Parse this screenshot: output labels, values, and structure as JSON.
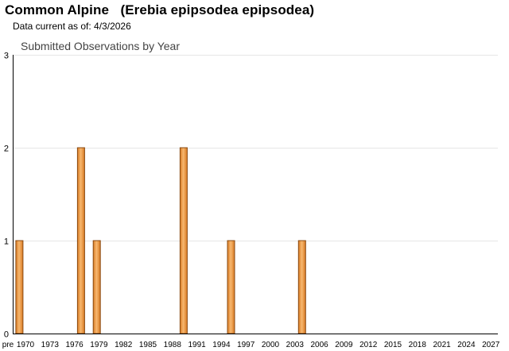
{
  "header": {
    "title": "Common Alpine   (Erebia epipsodea epipsodea)",
    "data_current": "Data current as of: 4/3/2026"
  },
  "colors": {
    "bar_fill_light": "#f7b870",
    "bar_fill_dark": "#d97a22",
    "bar_stroke": "#8a4a10",
    "grid": "#e6e6e6",
    "axis": "#000000"
  },
  "chart_data": {
    "type": "bar",
    "title": "Submitted Observations by Year",
    "xlabel": "",
    "ylabel": "",
    "ylim": [
      0,
      3
    ],
    "yticks": [
      0,
      1,
      2,
      3
    ],
    "grid": true,
    "x_tick_labels": [
      "pre",
      "1970",
      "1973",
      "1976",
      "1979",
      "1982",
      "1985",
      "1988",
      "1991",
      "1994",
      "1997",
      "2000",
      "2003",
      "2006",
      "2009",
      "2012",
      "2015",
      "2018",
      "2021",
      "2024",
      "2027"
    ],
    "categories": [
      "pre 1970",
      "1976",
      "1978",
      "1989",
      "1995",
      "2004"
    ],
    "values": [
      1,
      2,
      1,
      2,
      1,
      1
    ]
  }
}
